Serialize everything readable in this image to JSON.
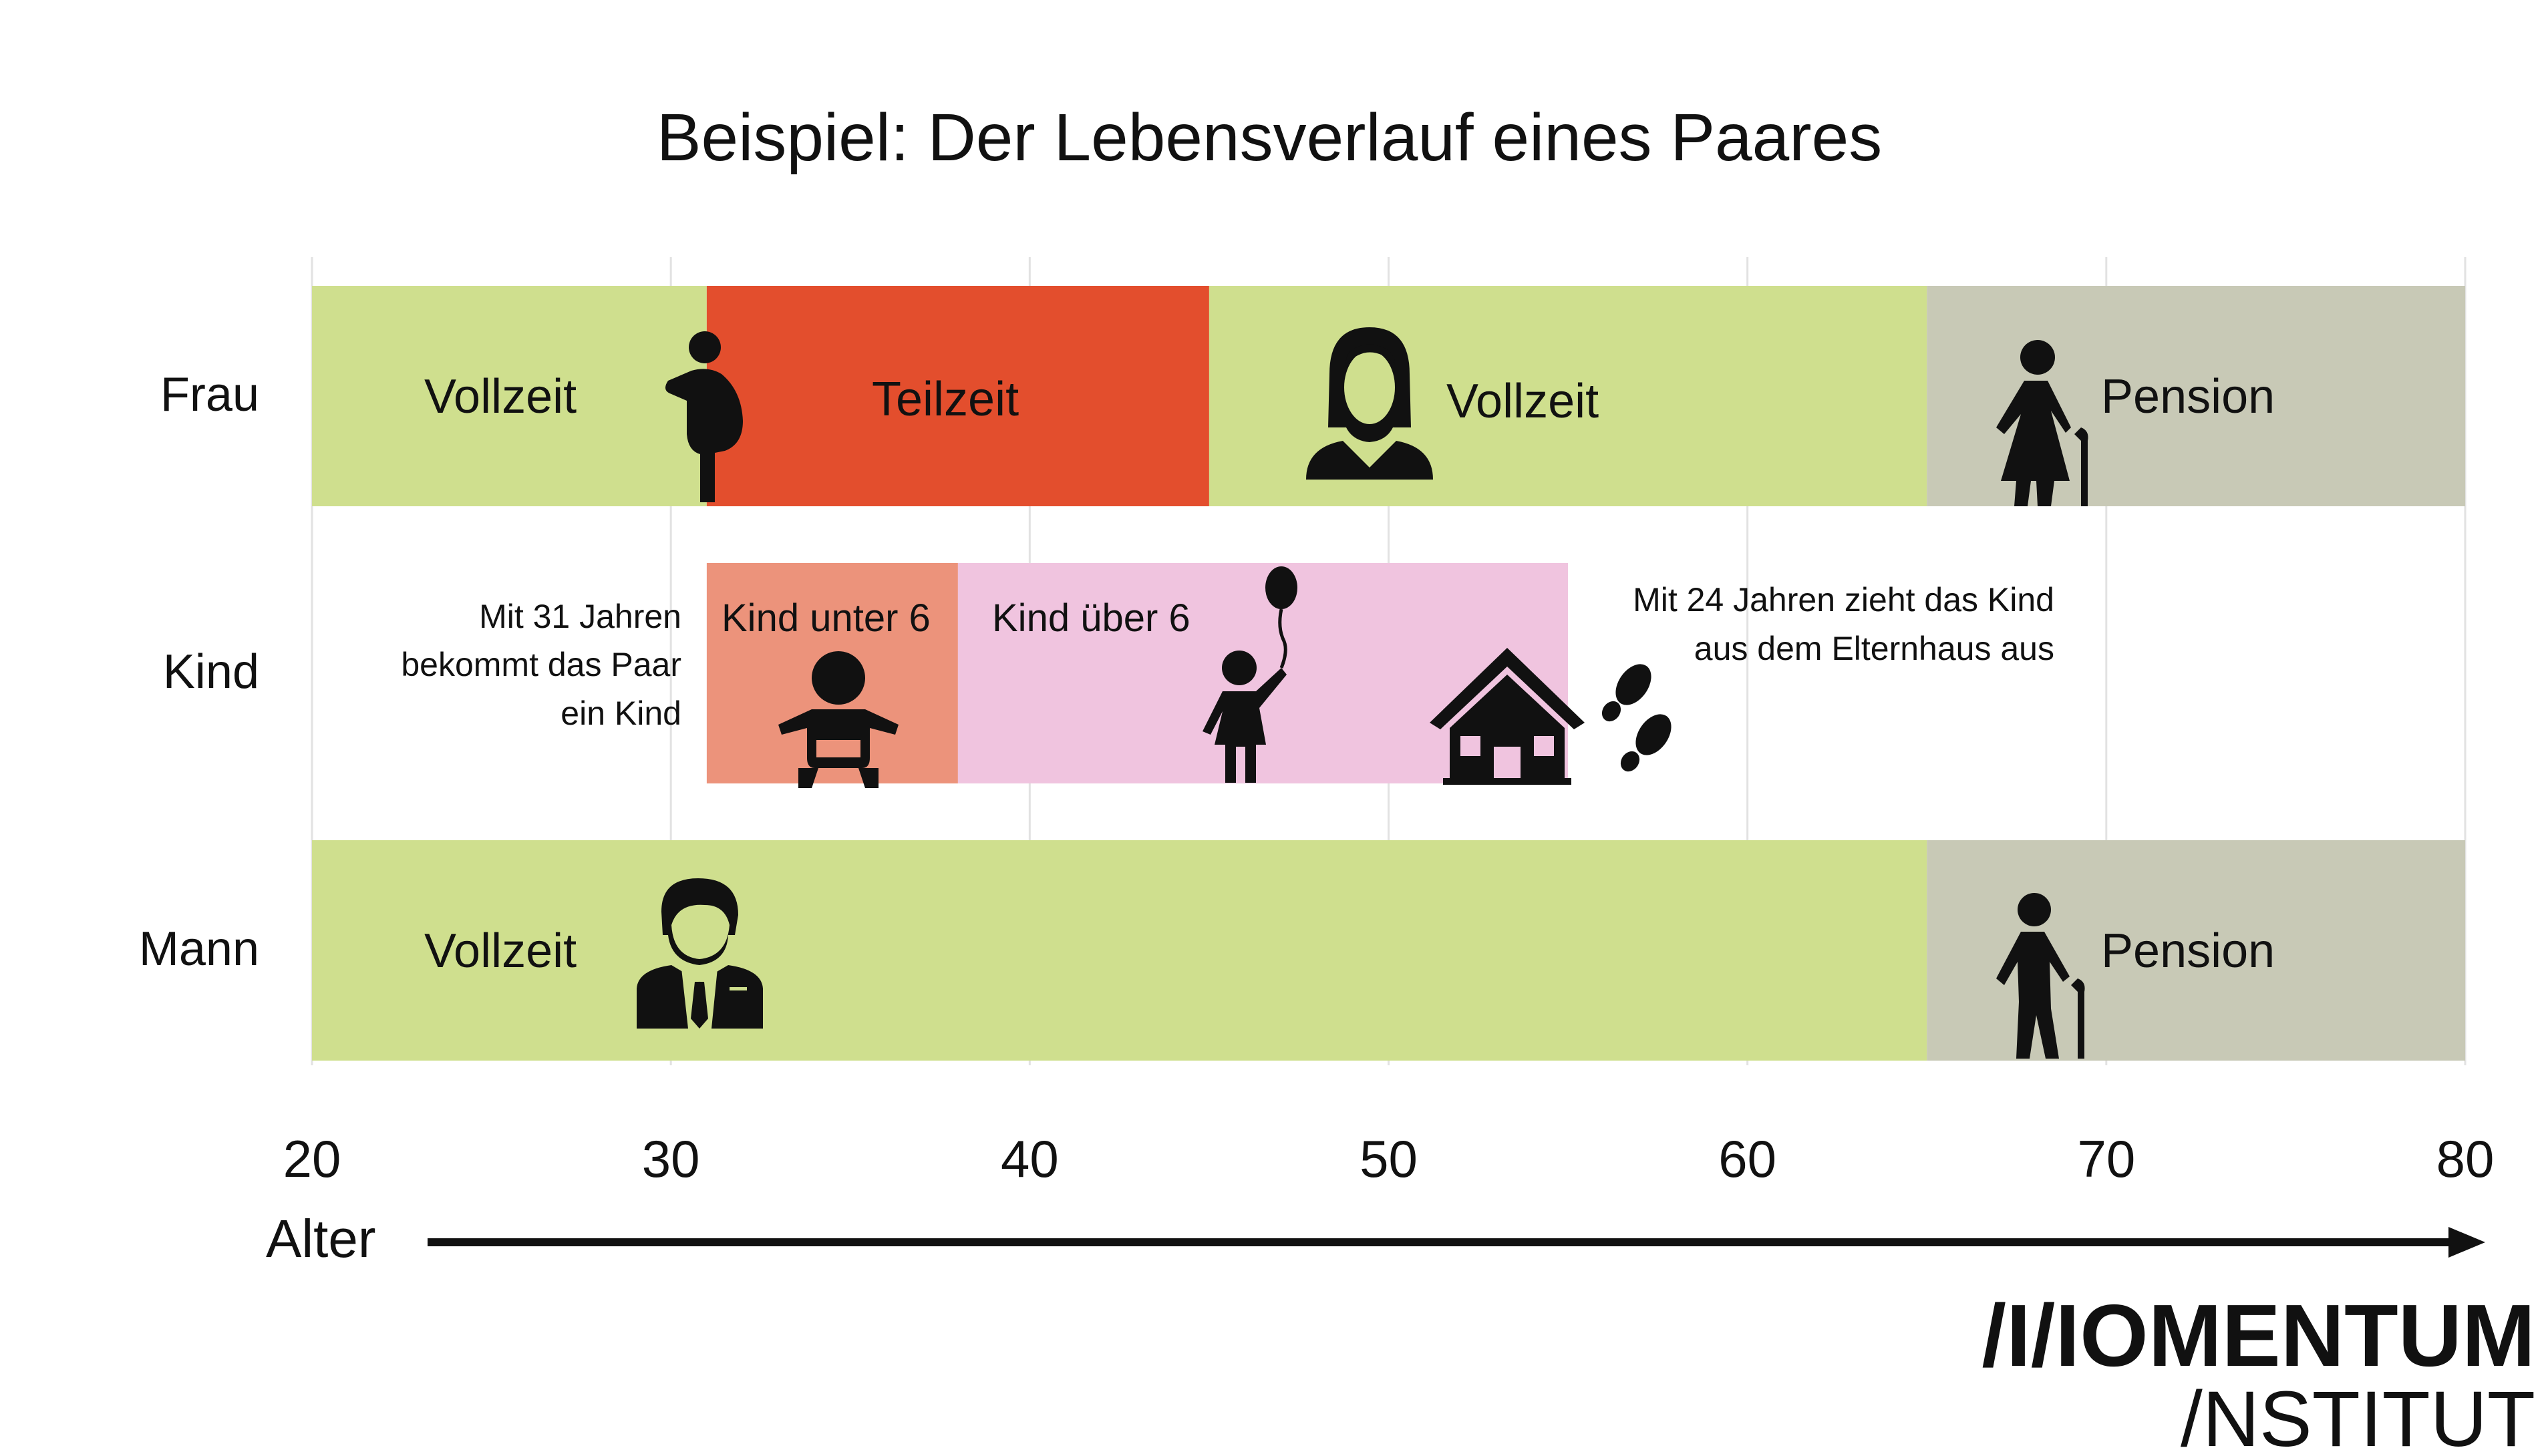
{
  "chart_data": {
    "type": "bar",
    "title": "Beispiel: Der Lebensverlauf eines Paares",
    "xlabel": "Alter",
    "xlim": [
      20,
      80
    ],
    "xticks": [
      20,
      30,
      40,
      50,
      60,
      70,
      80
    ],
    "grid": true,
    "rows": [
      {
        "label": "Frau",
        "segments": [
          {
            "start": 20,
            "end": 31,
            "label": "Vollzeit",
            "color": "#cfdf8e",
            "icon": "pregnant-woman-icon"
          },
          {
            "start": 31,
            "end": 45,
            "label": "Teilzeit",
            "color": "#e34e2d"
          },
          {
            "start": 45,
            "end": 65,
            "label": "Vollzeit",
            "color": "#cfdf8e",
            "icon": "woman-icon"
          },
          {
            "start": 65,
            "end": 80,
            "label": "Pension",
            "color": "#c8c9b6",
            "icon": "elderly-woman-icon"
          }
        ]
      },
      {
        "label": "Kind",
        "segments": [
          {
            "start": 31,
            "end": 38,
            "label": "Kind unter 6",
            "color": "#ec937b",
            "icon": "baby-icon"
          },
          {
            "start": 38,
            "end": 55,
            "label": "Kind über 6",
            "color": "#f0c4df",
            "icon": "child-balloon-icon"
          }
        ]
      },
      {
        "label": "Mann",
        "segments": [
          {
            "start": 20,
            "end": 65,
            "label": "Vollzeit",
            "color": "#cfdf8e",
            "icon": "businessman-icon"
          },
          {
            "start": 65,
            "end": 80,
            "label": "Pension",
            "color": "#c8c9b6",
            "icon": "elderly-man-icon"
          }
        ]
      }
    ],
    "annotations": [
      {
        "lines": [
          "Mit 31 Jahren",
          "bekommt das Paar",
          "ein Kind"
        ]
      },
      {
        "lines": [
          "Mit 24 Jahren zieht das Kind",
          "aus dem Elternhaus aus"
        ]
      }
    ],
    "icons": [
      "house-icon",
      "footprints-icon"
    ]
  },
  "logo": {
    "line1": "/I/IOMENTUM",
    "line2": "/NSTITUT"
  }
}
